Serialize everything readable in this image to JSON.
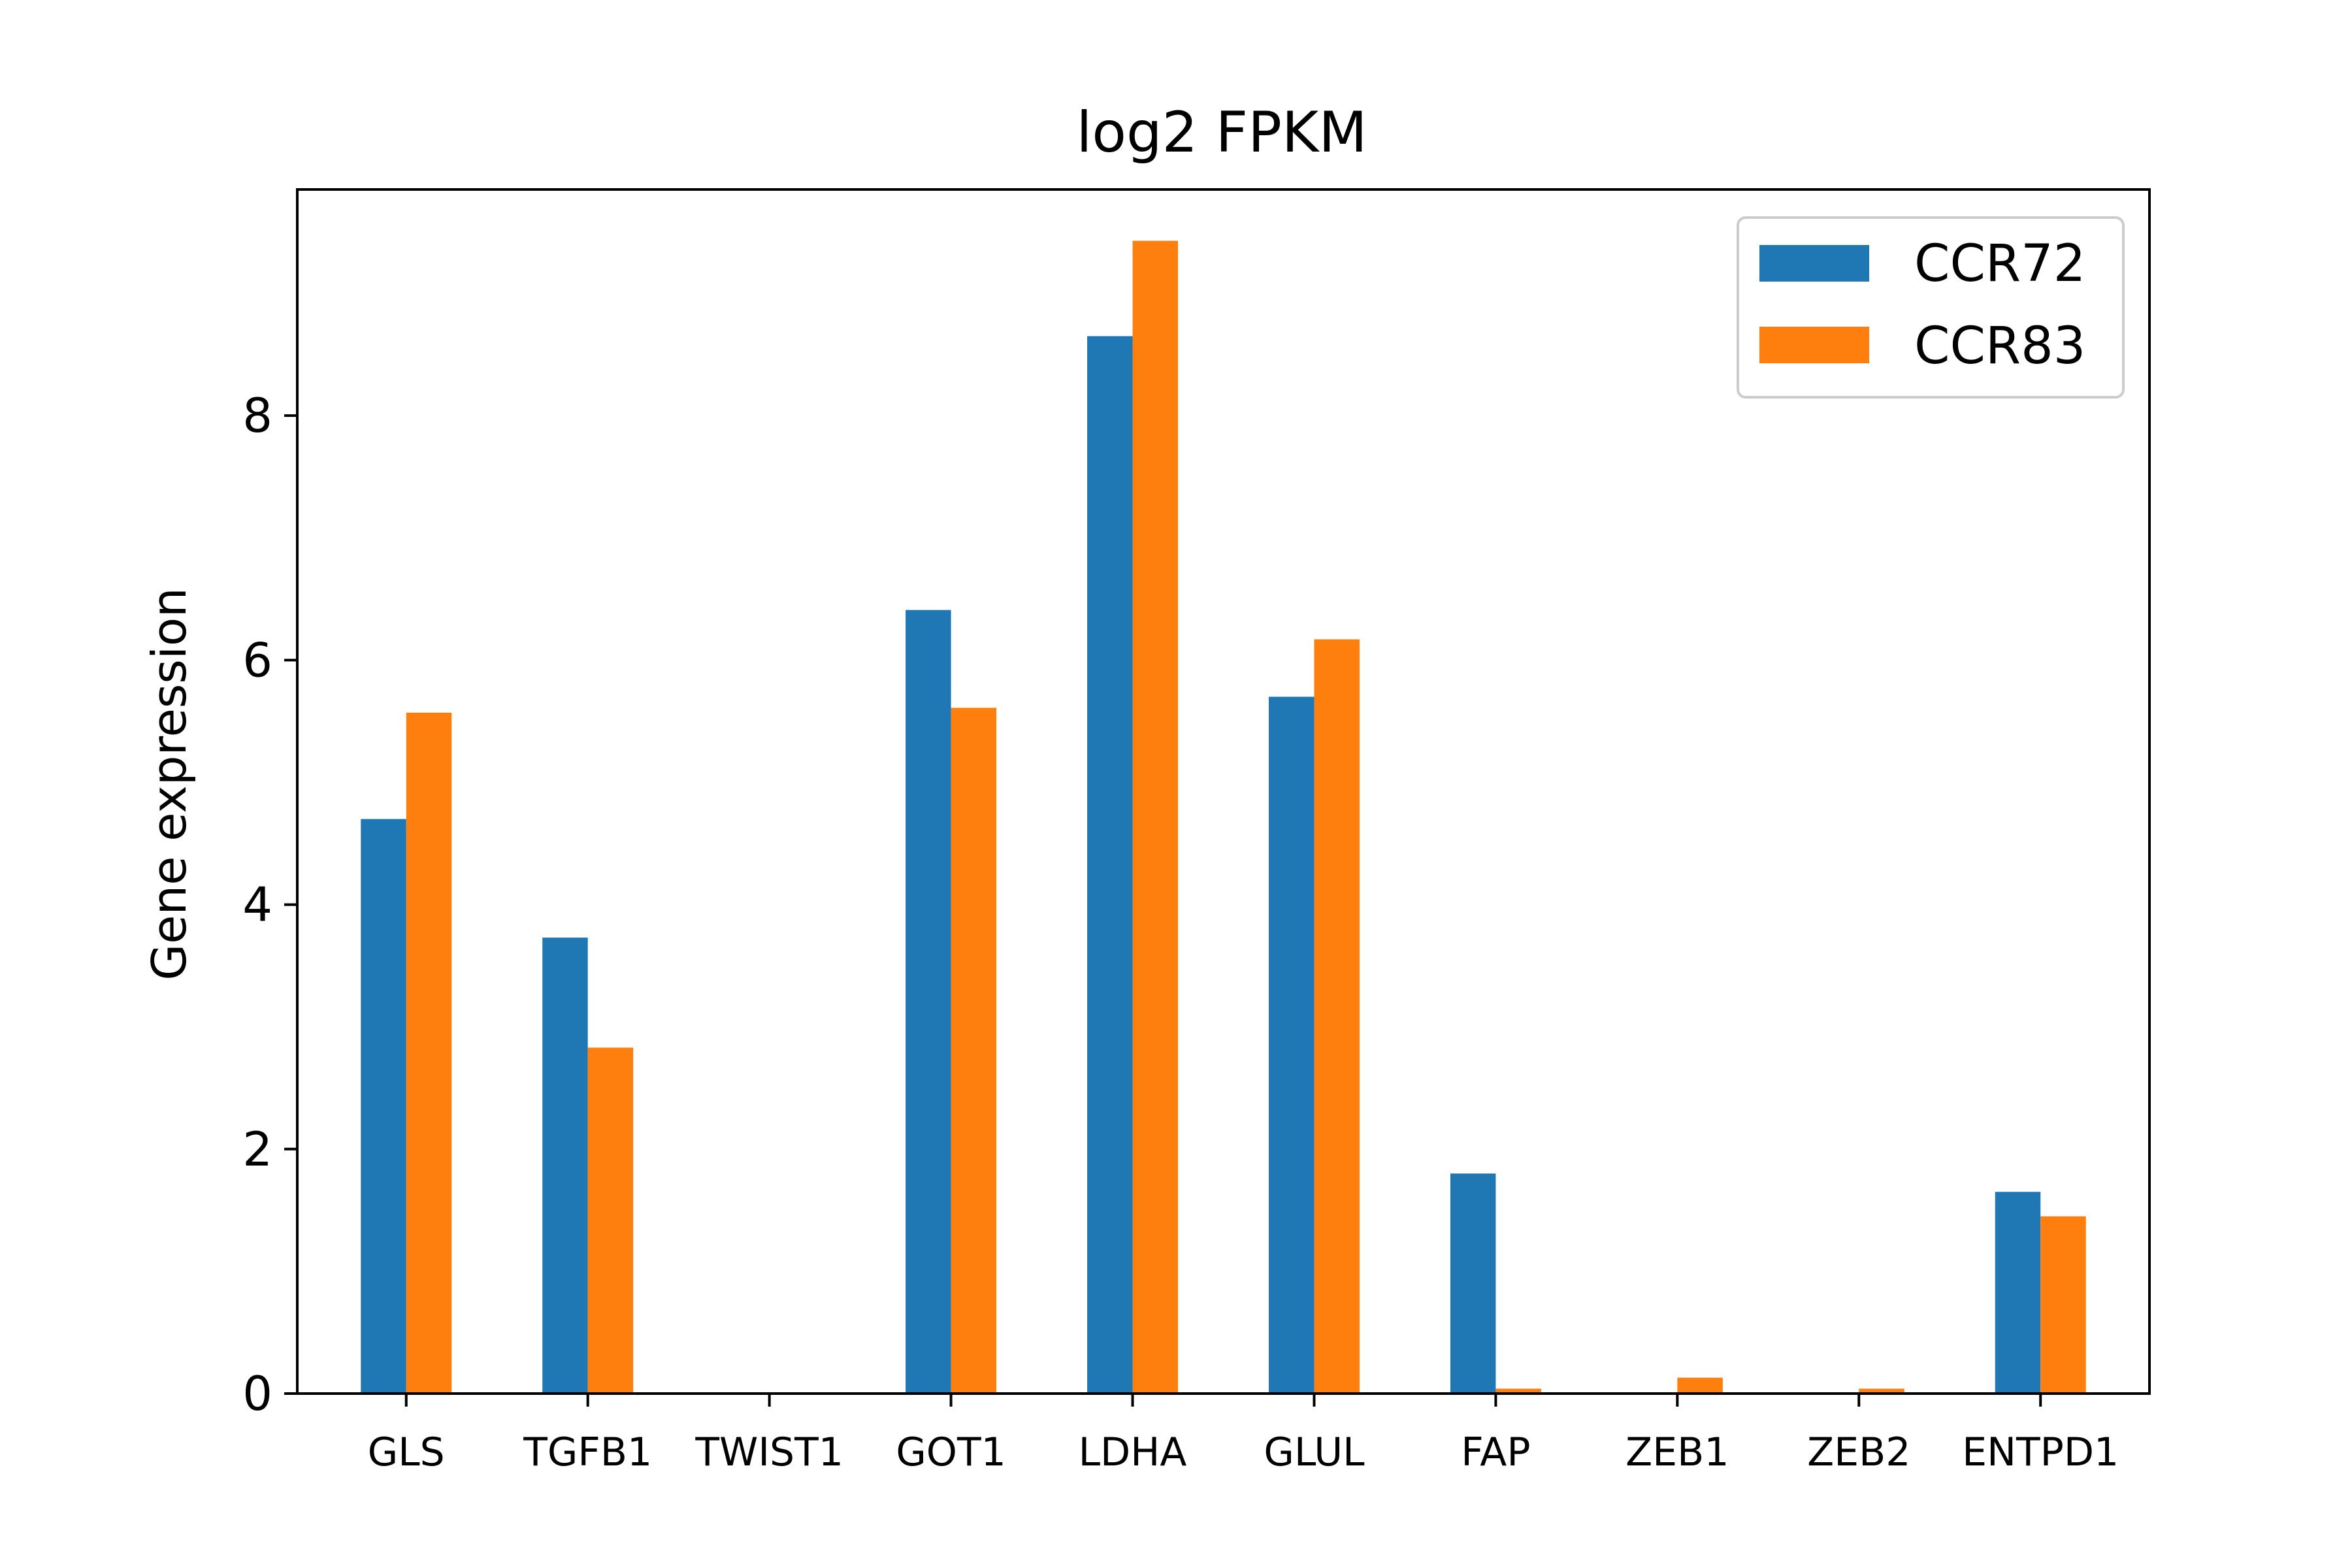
{
  "chart_data": {
    "type": "bar",
    "title": "log2 FPKM",
    "xlabel": "",
    "ylabel": "Gene expression",
    "ylim": [
      0,
      9.85
    ],
    "yticks": [
      0,
      2,
      4,
      6,
      8
    ],
    "grid": false,
    "legend_position": "top-right",
    "categories": [
      "GLS",
      "TGFB1",
      "TWIST1",
      "GOT1",
      "LDHA",
      "GLUL",
      "FAP",
      "ZEB1",
      "ZEB2",
      "ENTPD1"
    ],
    "series": [
      {
        "name": "CCR72",
        "color": "#1f77b4",
        "values": [
          4.7,
          3.73,
          0.0,
          6.41,
          8.65,
          5.7,
          1.8,
          0.0,
          0.0,
          1.65
        ]
      },
      {
        "name": "CCR83",
        "color": "#ff7f0e",
        "values": [
          5.57,
          2.83,
          0.0,
          5.61,
          9.43,
          6.17,
          0.04,
          0.13,
          0.04,
          1.45
        ]
      }
    ]
  }
}
